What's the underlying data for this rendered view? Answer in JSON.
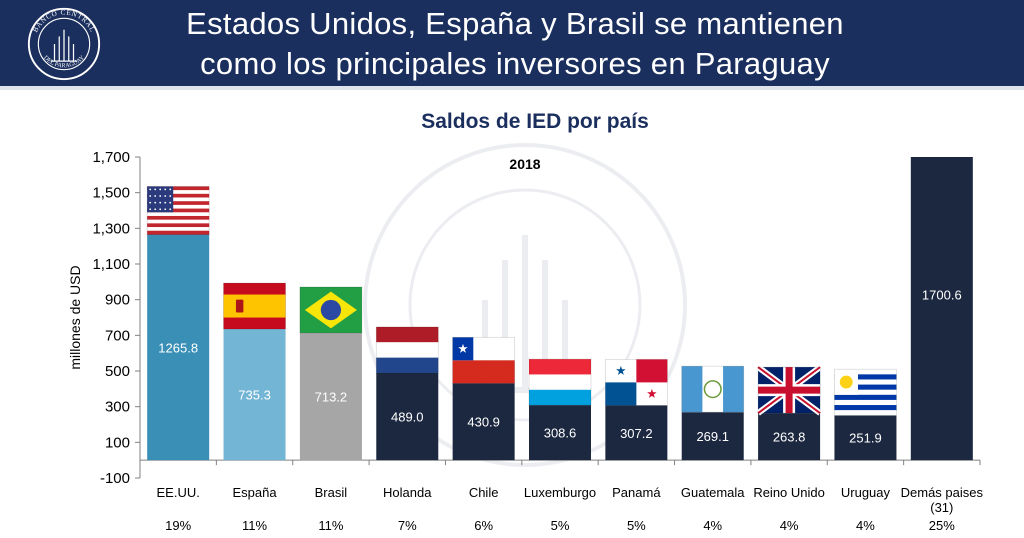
{
  "header": {
    "title_line1": "Estados Unidos, España y Brasil se mantienen",
    "title_line2": "como los principales inversores en Paraguay",
    "logo_text_top": "BANCO CENTRAL",
    "logo_text_bottom": "DEL PARAGUAY"
  },
  "colors": {
    "header_bg": "#1b2f5e",
    "title_text": "#1b2f5e",
    "bar_usa": "#3a8fb7",
    "bar_spain": "#72b5d4",
    "bar_brazil": "#a6a6a6",
    "bar_other": "#1c2840"
  },
  "watermark_text": "BANCO CENTRAL DEL PARAGUAY",
  "chart_data": {
    "type": "bar",
    "title": "Saldos de IED por país",
    "subtitle": "2018",
    "ylabel": "millones de USD",
    "ylim": [
      -100,
      1700
    ],
    "yticks": [
      -100,
      100,
      300,
      500,
      700,
      900,
      1100,
      1300,
      1500,
      1700
    ],
    "ytick_labels": [
      "-100",
      "100",
      "300",
      "500",
      "700",
      "900",
      "1,100",
      "1,300",
      "1,500",
      "1,700"
    ],
    "categories": [
      "EE.UU.",
      "España",
      "Brasil",
      "Holanda",
      "Chile",
      "Luxemburgo",
      "Panamá",
      "Guatemala",
      "Reino Unido",
      "Uruguay",
      "Demás paises (31)"
    ],
    "values": [
      1265.8,
      735.3,
      713.2,
      489.0,
      430.9,
      308.6,
      307.2,
      269.1,
      263.8,
      251.9,
      1700.6
    ],
    "value_labels": [
      "1265.8",
      "735.3",
      "713.2",
      "489.0",
      "430.9",
      "308.6",
      "307.2",
      "269.1",
      "263.8",
      "251.9",
      "1700.6"
    ],
    "shares": [
      "19%",
      "11%",
      "11%",
      "7%",
      "6%",
      "5%",
      "5%",
      "4%",
      "4%",
      "4%",
      "25%"
    ],
    "flags": [
      "usa-flag",
      "spain-flag",
      "brazil-flag",
      "netherlands-flag",
      "chile-flag",
      "luxembourg-flag",
      "panama-flag",
      "guatemala-flag",
      "united-kingdom-flag",
      "uruguay-flag",
      null
    ],
    "grid": false
  }
}
